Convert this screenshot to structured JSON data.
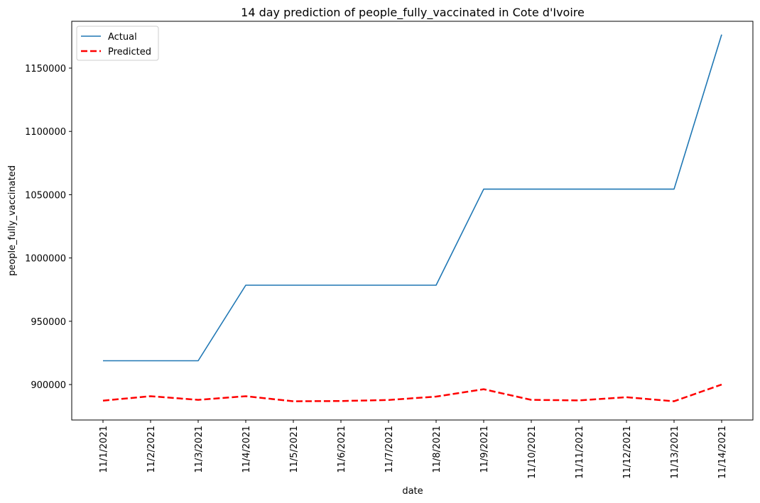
{
  "chart_data": {
    "type": "line",
    "title": "14 day prediction of people_fully_vaccinated in Cote d'Ivoire",
    "xlabel": "date",
    "ylabel": "people_fully_vaccinated",
    "categories": [
      "11/1/2021",
      "11/2/2021",
      "11/3/2021",
      "11/4/2021",
      "11/5/2021",
      "11/6/2021",
      "11/7/2021",
      "11/8/2021",
      "11/9/2021",
      "11/10/2021",
      "11/11/2021",
      "11/12/2021",
      "11/13/2021",
      "11/14/2021"
    ],
    "series": [
      {
        "name": "Actual",
        "color": "#1f77b4",
        "style": "solid",
        "values": [
          918800,
          918800,
          918800,
          978500,
          978500,
          978500,
          978500,
          978500,
          1054400,
          1054400,
          1054400,
          1054400,
          1054400,
          1176500
        ]
      },
      {
        "name": "Predicted",
        "color": "#ff0000",
        "style": "dashed",
        "values": [
          887300,
          890800,
          887900,
          890800,
          886800,
          887000,
          887800,
          890500,
          896300,
          887900,
          887500,
          890000,
          886800,
          900000
        ]
      }
    ],
    "yticks": [
      900000,
      950000,
      1000000,
      1050000,
      1100000,
      1150000
    ],
    "ylim": [
      872000,
      1187000
    ],
    "grid": false,
    "legend_position": "upper left"
  }
}
